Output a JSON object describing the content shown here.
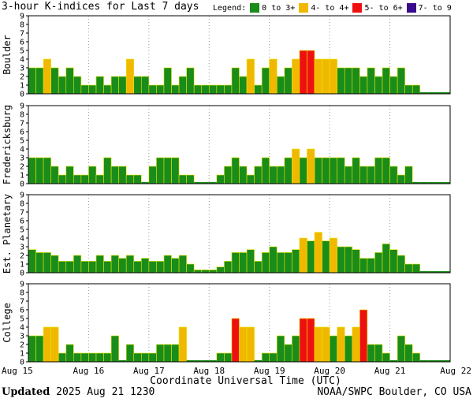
{
  "title": "3-hour K-indices for Last 7 days",
  "legend": {
    "label": "Legend:",
    "items": [
      {
        "label": "0 to 3+",
        "color": "#1a8c1a"
      },
      {
        "label": "4- to 4+",
        "color": "#f0b800"
      },
      {
        "label": "5- to 6+",
        "color": "#ee1010"
      },
      {
        "label": "7- to 9",
        "color": "#3a0a8c"
      }
    ]
  },
  "footer": {
    "updated_label": "Updated",
    "updated_value": "2025 Aug 21 1230",
    "credit": "NOAA/SWPC Boulder, CO USA"
  },
  "chart_data": {
    "type": "bar",
    "xlabel": "Coordinate Universal Time (UTC)",
    "x_ticks": [
      "Aug 15",
      "Aug 16",
      "Aug 17",
      "Aug 18",
      "Aug 19",
      "Aug 20",
      "Aug 21",
      "Aug 22"
    ],
    "ylim": [
      0,
      9
    ],
    "y_ticks": [
      0,
      1,
      2,
      3,
      4,
      5,
      6,
      7,
      8,
      9
    ],
    "grid": true,
    "bins_per_day": 8,
    "panels": [
      {
        "name": "Boulder",
        "values": [
          3,
          3,
          4,
          3,
          2,
          3,
          2,
          1,
          1,
          2,
          1,
          2,
          2,
          4,
          2,
          2,
          1,
          1,
          3,
          1,
          2,
          3,
          1,
          1,
          1,
          1,
          1,
          3,
          2,
          4,
          1,
          3,
          4,
          2,
          3,
          4,
          5,
          5,
          4,
          4,
          4,
          3,
          3,
          3,
          2,
          3,
          2,
          3,
          2,
          3,
          1,
          1,
          0,
          0,
          0,
          0
        ]
      },
      {
        "name": "Fredericksburg",
        "values": [
          3,
          3,
          3,
          2,
          1,
          2,
          1,
          1,
          2,
          1,
          3,
          2,
          2,
          1,
          1,
          0,
          2,
          3,
          3,
          3,
          1,
          1,
          0,
          0,
          0,
          1,
          2,
          3,
          2,
          1,
          2,
          3,
          2,
          2,
          3,
          4,
          3,
          4,
          3,
          3,
          3,
          3,
          2,
          3,
          2,
          2,
          3,
          3,
          2,
          1,
          2,
          0,
          0,
          0,
          0,
          0
        ]
      },
      {
        "name": "Est. Planetary",
        "values": [
          2.67,
          2.33,
          2.33,
          2,
          1.33,
          1.33,
          2,
          1.33,
          1.33,
          2,
          1.33,
          2,
          1.67,
          2,
          1.33,
          1.67,
          1.33,
          1.33,
          2,
          1.67,
          2,
          1,
          0.33,
          0.33,
          0.33,
          0.67,
          1.33,
          2.33,
          2.33,
          2.67,
          1.33,
          2.33,
          3,
          2.33,
          2.33,
          2.67,
          4,
          3.67,
          4.67,
          3.67,
          4,
          3,
          3,
          2.67,
          1.67,
          1.67,
          2.33,
          3.33,
          2.67,
          2,
          1,
          1,
          0,
          0,
          0,
          0
        ]
      },
      {
        "name": "College",
        "values": [
          3,
          3,
          4,
          4,
          1,
          2,
          1,
          1,
          1,
          1,
          1,
          3,
          0,
          2,
          1,
          1,
          1,
          2,
          2,
          2,
          4,
          0,
          0,
          0,
          0,
          1,
          1,
          5,
          4,
          4,
          0,
          1,
          1,
          3,
          2,
          3,
          5,
          5,
          4,
          4,
          3,
          4,
          3,
          4,
          6,
          2,
          2,
          1,
          0,
          3,
          2,
          1,
          0,
          0,
          0,
          0
        ]
      }
    ]
  }
}
